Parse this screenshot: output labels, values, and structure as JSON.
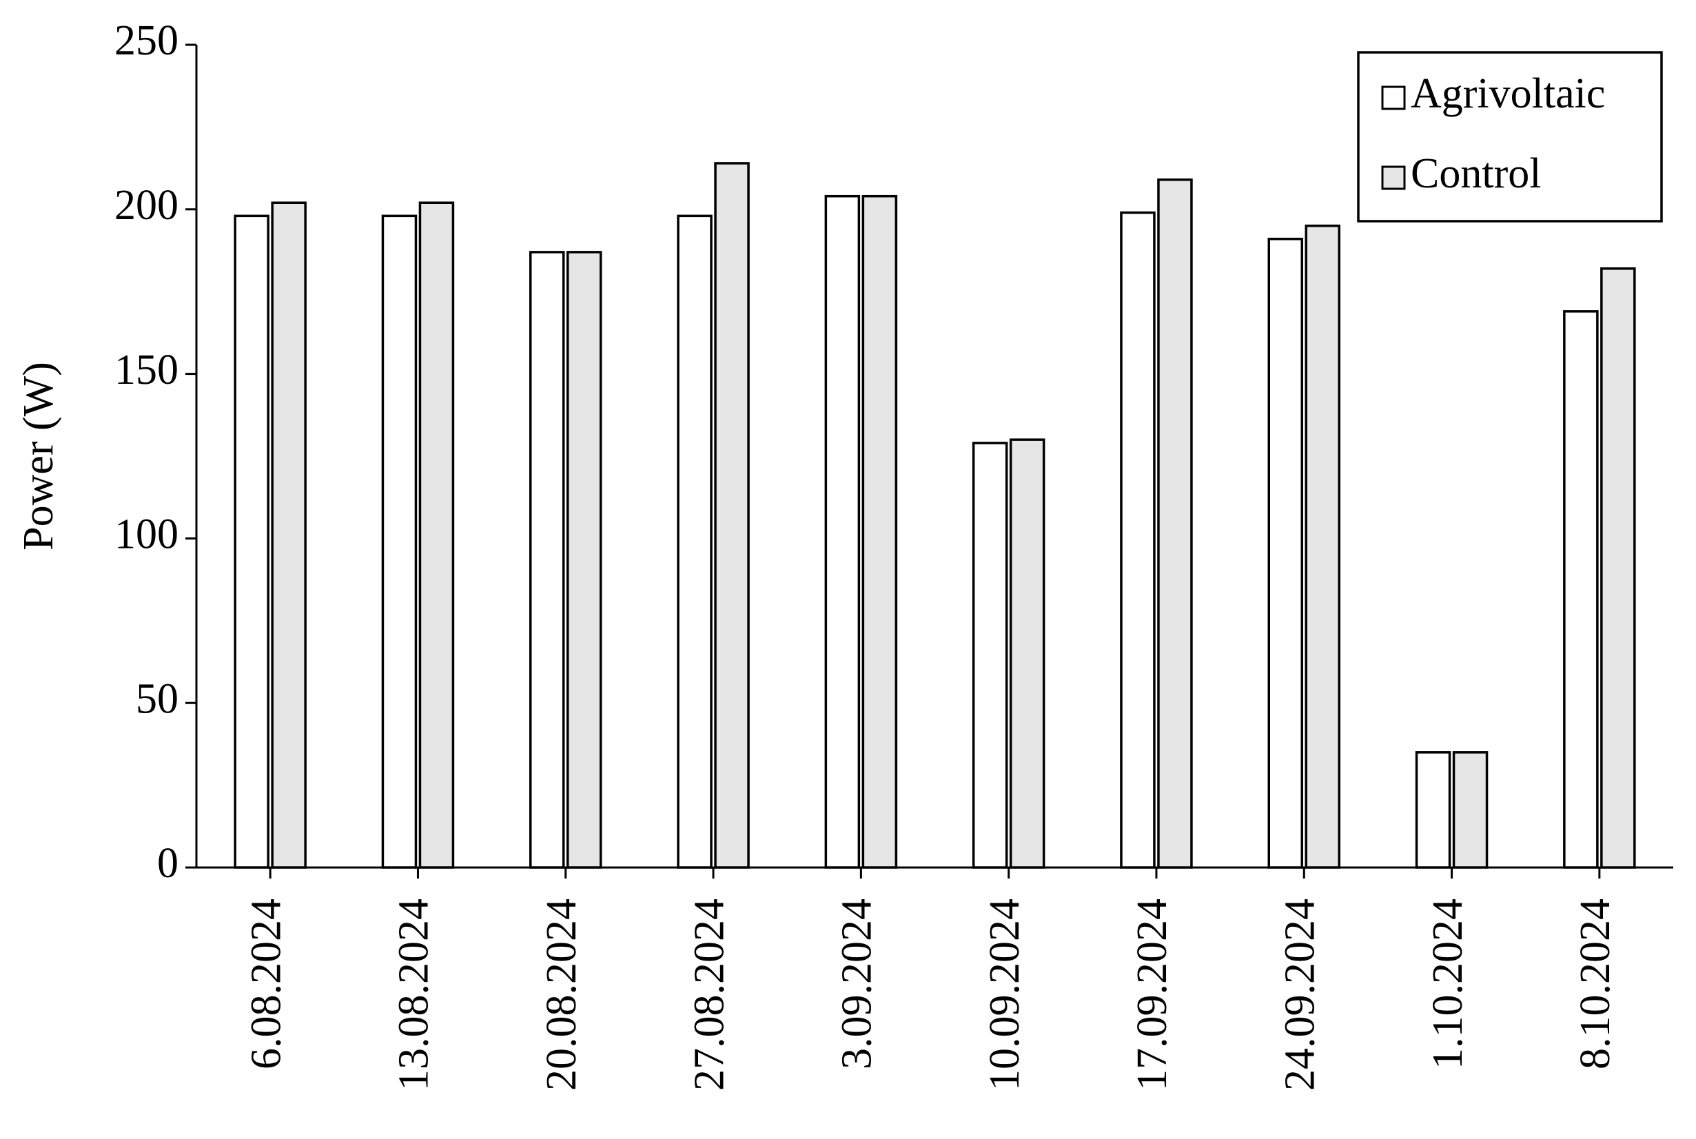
{
  "chart_data": {
    "type": "bar",
    "y_label": "Power (W)",
    "categories": [
      "6.08.2024",
      "13.08.2024",
      "20.08.2024",
      "27.08.2024",
      "3.09.2024",
      "10.09.2024",
      "17.09.2024",
      "24.09.2024",
      "1.10.2024",
      "8.10.2024"
    ],
    "series": [
      {
        "name": "Agrivoltaic",
        "color": "#ffffff",
        "values": [
          198,
          198,
          187,
          198,
          204,
          129,
          199,
          191,
          35,
          169
        ]
      },
      {
        "name": "Control",
        "color": "#e6e6e6",
        "values": [
          202,
          202,
          187,
          214,
          204,
          130,
          209,
          195,
          35,
          182
        ]
      }
    ],
    "ylim": [
      0,
      250
    ],
    "yticks": [
      0,
      50,
      100,
      150,
      200,
      250
    ],
    "legend": "top-right"
  }
}
